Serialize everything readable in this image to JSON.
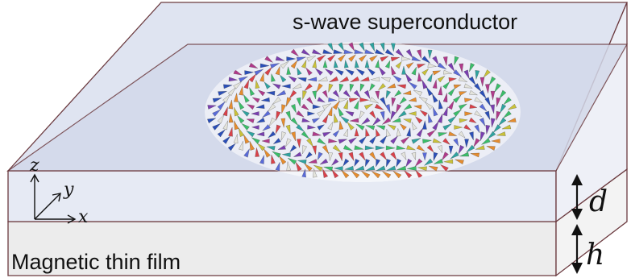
{
  "labels": {
    "superconductor": "s-wave superconductor",
    "film": "Magnetic thin film",
    "d": "d",
    "h": "h"
  },
  "axes": {
    "z": "z",
    "y": "y",
    "x": "x"
  },
  "colors": {
    "sc_top": "#dfe4f1",
    "sc_front": "#e6eaf4",
    "sc_side": "#eef0f7",
    "film_front": "#ececec",
    "film_side": "#f3f3f3",
    "edge": "#6b3a3f",
    "cone_palette": [
      "#2b4fb8",
      "#7a3fb0",
      "#b03a8a",
      "#2fa3a0",
      "#3bbd6a",
      "#c9c13a",
      "#e58c2e",
      "#d9424a",
      "#e4e4dc",
      "#5a6bd8"
    ]
  }
}
